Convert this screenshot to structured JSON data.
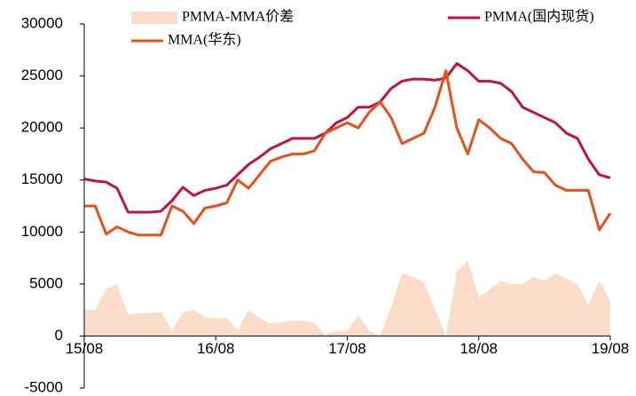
{
  "chart_data": {
    "type": "line",
    "x": [
      0,
      1,
      2,
      3,
      4,
      5,
      6,
      7,
      8,
      9,
      10,
      11,
      12,
      13,
      14,
      15,
      16,
      17,
      18,
      19,
      20,
      21,
      22,
      23,
      24,
      25,
      26,
      27,
      28,
      29,
      30,
      31,
      32,
      33,
      34,
      35,
      36,
      37,
      38,
      39,
      40,
      41,
      42,
      43,
      44,
      45,
      46,
      47,
      48
    ],
    "xlim": [
      0,
      48
    ],
    "xticks": [
      {
        "value": 0,
        "label": "15/08"
      },
      {
        "value": 12,
        "label": "16/08"
      },
      {
        "value": 24,
        "label": "17/08"
      },
      {
        "value": 36,
        "label": "18/08"
      },
      {
        "value": 48,
        "label": "19/08"
      }
    ],
    "ylim": [
      -5000,
      30000
    ],
    "yticks": [
      -5000,
      0,
      5000,
      10000,
      15000,
      20000,
      25000,
      30000
    ],
    "legend": "top",
    "series": [
      {
        "name": "PMMA-MMA价差",
        "kind": "area",
        "color": "#fadcc8",
        "values": [
          2500,
          2500,
          4500,
          5000,
          2000,
          2200,
          2200,
          2300,
          500,
          2300,
          2500,
          1800,
          1700,
          1700,
          500,
          2500,
          1700,
          1200,
          1300,
          1500,
          1500,
          1200,
          100,
          500,
          500,
          2000,
          500,
          0,
          2800,
          6000,
          5700,
          5200,
          2600,
          0,
          6200,
          7200,
          3700,
          4500,
          5300,
          5000,
          5000,
          5700,
          5300,
          6000,
          5500,
          5000,
          3000,
          5300,
          3400
        ]
      },
      {
        "name": "PMMA(国内现货)",
        "kind": "line",
        "color": "#c0143c",
        "values": [
          15100,
          14900,
          14800,
          14200,
          11900,
          11900,
          11900,
          12000,
          13000,
          14300,
          13500,
          14000,
          14200,
          14500,
          15500,
          16500,
          17200,
          18000,
          18500,
          19000,
          19000,
          19000,
          19500,
          20500,
          21000,
          22000,
          22000,
          22500,
          23800,
          24500,
          24700,
          24700,
          24600,
          24800,
          26200,
          25500,
          24500,
          24500,
          24300,
          23500,
          22000,
          21500,
          21000,
          20500,
          19500,
          19000,
          17000,
          15500,
          15200
        ]
      },
      {
        "name": "MMA(华东)",
        "kind": "line",
        "color": "#e8501a",
        "values": [
          12500,
          12500,
          9800,
          10500,
          10000,
          9700,
          9700,
          9700,
          12500,
          12000,
          10800,
          12300,
          12500,
          12800,
          15000,
          14200,
          15500,
          16800,
          17200,
          17500,
          17500,
          17800,
          19500,
          20000,
          20500,
          20000,
          21500,
          22500,
          21000,
          18500,
          19000,
          19500,
          22000,
          25500,
          20000,
          17500,
          20800,
          20000,
          19000,
          18500,
          17000,
          15800,
          15700,
          14500,
          14000,
          14000,
          14000,
          10200,
          11800
        ]
      }
    ]
  }
}
